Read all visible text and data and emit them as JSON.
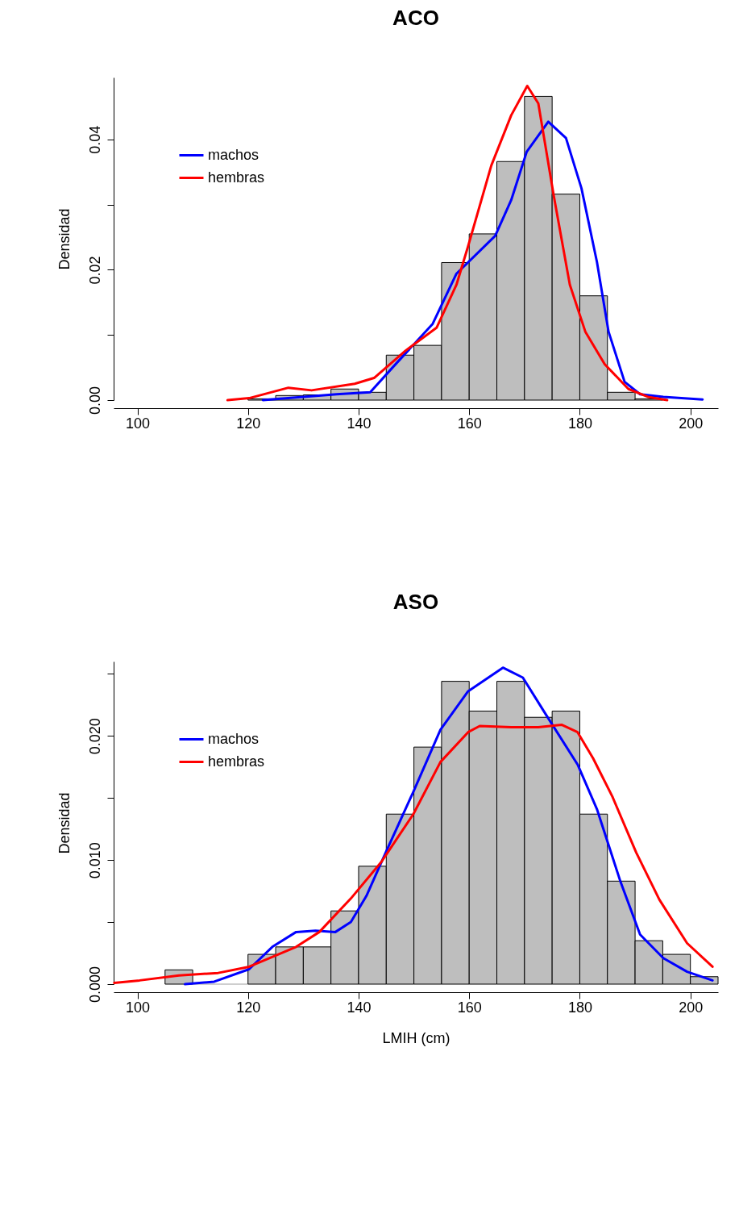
{
  "chart_data": [
    {
      "type": "histogram",
      "title": "ACO",
      "ylabel": "Densidad",
      "color": "#bebebe",
      "legend": "top left",
      "bins": [
        120,
        125,
        130,
        135,
        140,
        145,
        150,
        155,
        160,
        165,
        170,
        175,
        180,
        185,
        190,
        195
      ],
      "values": [
        0.0002,
        0.0007,
        0.0008,
        0.0017,
        0.0012,
        0.0069,
        0.0084,
        0.0211,
        0.0255,
        0.0366,
        0.0466,
        0.0316,
        0.016,
        0.0012,
        0.0002
      ],
      "series": [
        {
          "name": "machos",
          "color": "#0000ff",
          "type": "line",
          "x": [
            122.7,
            130,
            136,
            142.1,
            147,
            153.4,
            157.7,
            164.7,
            167.6,
            170.4,
            174.3,
            177.5,
            180.3,
            183.1,
            185.2,
            188.1,
            190.9,
            195.1,
            202.2
          ],
          "values": [
            0,
            0.0005,
            0.0009,
            0.0012,
            0.0058,
            0.0117,
            0.0194,
            0.0252,
            0.0307,
            0.0381,
            0.0427,
            0.0402,
            0.0325,
            0.0212,
            0.0105,
            0.0028,
            0.0009,
            0.0005,
            0.0001
          ]
        },
        {
          "name": "hembras",
          "color": "#ff0000",
          "type": "line",
          "x": [
            116.3,
            120.2,
            127.3,
            131.5,
            139.3,
            142.8,
            148.5,
            154.1,
            157.7,
            159.8,
            164,
            167.6,
            170.5,
            172.5,
            175.3,
            178.2,
            181,
            184.5,
            188.8,
            192.3,
            195.8
          ],
          "values": [
            0,
            0.0003,
            0.0019,
            0.0015,
            0.0025,
            0.0034,
            0.0076,
            0.0111,
            0.0177,
            0.0236,
            0.036,
            0.0437,
            0.0482,
            0.0455,
            0.0313,
            0.0177,
            0.0105,
            0.0055,
            0.0017,
            0.0005,
            0
          ]
        }
      ],
      "xlim": [
        95.7,
        205
      ],
      "xticks": [
        100,
        120,
        140,
        160,
        180,
        200
      ],
      "ylim": [
        0,
        0.0495
      ],
      "yticks": [
        {
          "value": 0,
          "label": "0.00"
        },
        {
          "value": 0.01,
          "label": null
        },
        0.02,
        {
          "value": 0.03,
          "label": null
        },
        0.04
      ]
    },
    {
      "type": "histogram",
      "title": "ASO",
      "xlabel": "LMIH (cm)",
      "ylabel": "Densidad",
      "color": "#bebebe",
      "legend": "top left",
      "bins": [
        105,
        110,
        115,
        120,
        125,
        130,
        135,
        140,
        145,
        150,
        155,
        160,
        165,
        170,
        175,
        180,
        185,
        190,
        195,
        200,
        205
      ],
      "values": [
        0.00115,
        0,
        0,
        0.0024,
        0.003,
        0.003,
        0.0059,
        0.0095,
        0.0137,
        0.0191,
        0.0244,
        0.022,
        0.0244,
        0.0215,
        0.022,
        0.0137,
        0.0083,
        0.0035,
        0.0024,
        0.0006
      ],
      "series": [
        {
          "name": "machos",
          "color": "#0000ff",
          "type": "line",
          "x": [
            108.6,
            113.9,
            120.2,
            124.4,
            128.7,
            132.2,
            135.8,
            138.6,
            141.4,
            144.9,
            149.9,
            154.8,
            159.8,
            166.1,
            169.7,
            173.9,
            179.6,
            183.1,
            187.4,
            190.9,
            195.1,
            199.4,
            204
          ],
          "values": [
            0,
            0.0002,
            0.0012,
            0.003,
            0.0042,
            0.0043,
            0.0042,
            0.005,
            0.0071,
            0.0106,
            0.0155,
            0.0205,
            0.0236,
            0.0255,
            0.0247,
            0.0217,
            0.0177,
            0.0141,
            0.0082,
            0.004,
            0.0021,
            0.001,
            0.0003
          ]
        },
        {
          "name": "hembras",
          "color": "#ff0000",
          "type": "line",
          "x": [
            95.8,
            100.4,
            107.5,
            114.6,
            120.2,
            128.7,
            132.9,
            138.6,
            144.2,
            149.9,
            154.8,
            159.8,
            161.9,
            167.6,
            172.5,
            176.7,
            179.6,
            182.4,
            185.9,
            190.2,
            194.4,
            199.4,
            204
          ],
          "values": [
            0.0001,
            0.0003,
            0.0007,
            0.0009,
            0.0014,
            0.003,
            0.0042,
            0.0069,
            0.0099,
            0.0137,
            0.0179,
            0.0203,
            0.0208,
            0.0207,
            0.0207,
            0.0209,
            0.0203,
            0.0182,
            0.0151,
            0.0106,
            0.0068,
            0.0033,
            0.0014
          ]
        }
      ],
      "xlim": [
        95.7,
        205
      ],
      "xticks": [
        100,
        120,
        140,
        160,
        180,
        200
      ],
      "ylim": [
        0,
        0.026
      ],
      "yticks": [
        {
          "value": 0,
          "label": "0.000"
        },
        {
          "value": 0.005,
          "label": null
        },
        {
          "value": 0.01,
          "label": "0.010"
        },
        {
          "value": 0.015,
          "label": null
        },
        {
          "value": 0.02,
          "label": "0.020"
        },
        {
          "value": 0.025,
          "label": null
        }
      ]
    }
  ]
}
